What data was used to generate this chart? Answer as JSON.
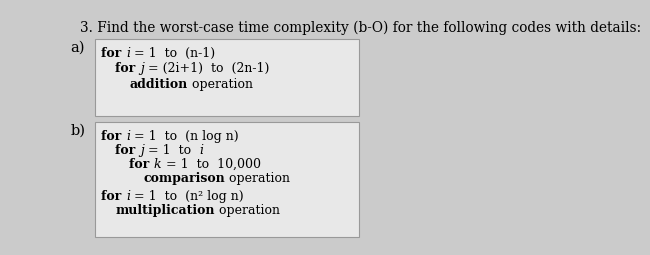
{
  "title": "3. Find the worst-case time complexity (b-O) for the following codes with details:",
  "title_fontsize": 9.8,
  "bg_color": "#cbcbcb",
  "box_bg": "#e8e8e8",
  "box_border": "#999999",
  "label_a": "a)",
  "label_b": "b)",
  "box_a_lines": [
    {
      "indent": 0,
      "segments": [
        {
          "text": "for ",
          "bold": true,
          "italic": false
        },
        {
          "text": "i",
          "bold": false,
          "italic": true
        },
        {
          "text": " = 1  to  (n-1)",
          "bold": false,
          "italic": false
        }
      ]
    },
    {
      "indent": 1,
      "segments": [
        {
          "text": "for ",
          "bold": true,
          "italic": false
        },
        {
          "text": "j",
          "bold": false,
          "italic": true
        },
        {
          "text": " = (2i+1)  to  (2n-1)",
          "bold": false,
          "italic": false
        }
      ]
    },
    {
      "indent": 2,
      "segments": [
        {
          "text": "addition",
          "bold": true,
          "italic": false
        },
        {
          "text": " operation",
          "bold": false,
          "italic": false
        }
      ]
    }
  ],
  "box_b_lines": [
    {
      "indent": 0,
      "segments": [
        {
          "text": "for ",
          "bold": true,
          "italic": false
        },
        {
          "text": "i",
          "bold": false,
          "italic": true
        },
        {
          "text": " = 1  to  (n log n)",
          "bold": false,
          "italic": false
        }
      ]
    },
    {
      "indent": 1,
      "segments": [
        {
          "text": "for ",
          "bold": true,
          "italic": false
        },
        {
          "text": "j",
          "bold": false,
          "italic": true
        },
        {
          "text": " = 1  to  ",
          "bold": false,
          "italic": false
        },
        {
          "text": "i",
          "bold": false,
          "italic": true
        }
      ]
    },
    {
      "indent": 2,
      "segments": [
        {
          "text": "for ",
          "bold": true,
          "italic": false
        },
        {
          "text": "k",
          "bold": false,
          "italic": true
        },
        {
          "text": " = 1  to  10,000",
          "bold": false,
          "italic": false
        }
      ]
    },
    {
      "indent": 3,
      "segments": [
        {
          "text": "comparison",
          "bold": true,
          "italic": false
        },
        {
          "text": " operation",
          "bold": false,
          "italic": false
        }
      ]
    },
    {
      "indent": 0,
      "segments": [
        {
          "text": "for ",
          "bold": true,
          "italic": false
        },
        {
          "text": "i",
          "bold": false,
          "italic": true
        },
        {
          "text": " = 1  to  (n² log n)",
          "bold": false,
          "italic": false
        }
      ]
    },
    {
      "indent": 1,
      "segments": [
        {
          "text": "multiplication",
          "bold": true,
          "italic": false
        },
        {
          "text": " operation",
          "bold": false,
          "italic": false
        }
      ]
    }
  ],
  "font_size": 9.0,
  "label_fontsize": 10.5,
  "indent_size": 18
}
